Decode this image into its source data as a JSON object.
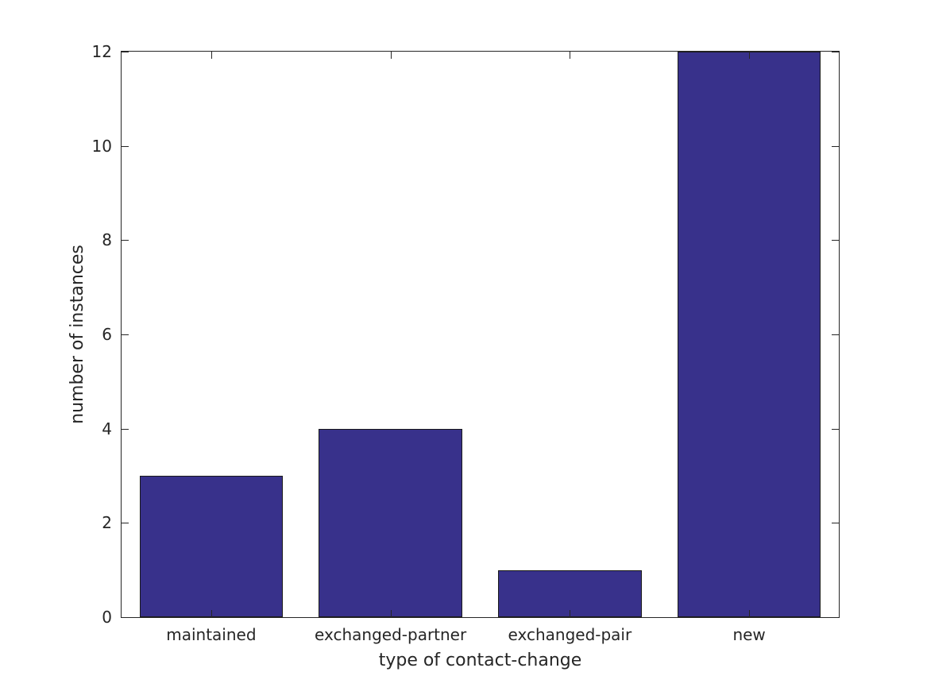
{
  "chart_data": {
    "type": "bar",
    "title": "",
    "categories": [
      "maintained",
      "exchanged-partner",
      "exchanged-pair",
      "new"
    ],
    "values": [
      3,
      4,
      1,
      12
    ],
    "xlabel": "type of contact-change",
    "ylabel": "number of instances",
    "ylim": [
      0,
      12
    ],
    "yticks": [
      0,
      2,
      4,
      6,
      8,
      10,
      12
    ],
    "bar_width_fraction": 0.8,
    "grid": false,
    "legend": null,
    "colors": {
      "bar_fill": "#38318b",
      "bar_edge": "#1a1a1a",
      "axis": "#262626",
      "text": "#262626"
    }
  }
}
